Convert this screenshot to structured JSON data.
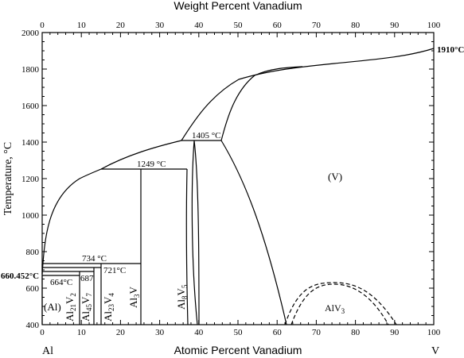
{
  "chart_data": {
    "type": "phase-diagram",
    "top_axis_title": "Weight Percent Vanadium",
    "bottom_axis_title": "Atomic Percent Vanadium",
    "y_axis_title": "Temperature, °C",
    "x_tick_labels_bottom": [
      "0",
      "10",
      "20",
      "30",
      "40",
      "50",
      "60",
      "70",
      "80",
      "90",
      "100"
    ],
    "x_tick_labels_top": [
      "0",
      "10",
      "20",
      "30",
      "40",
      "50",
      "60",
      "70",
      "80",
      "90",
      "100"
    ],
    "y_tick_labels": [
      "400",
      "600",
      "800",
      "1000",
      "1200",
      "1400",
      "1600",
      "1800",
      "2000"
    ],
    "xlim": [
      0,
      100
    ],
    "ylim": [
      400,
      2000
    ],
    "left_element": "Al",
    "right_element": "V",
    "temperature_labels": {
      "al_melting": "660.452°C",
      "v_melting": "1910°C",
      "t1405": "1405 °C",
      "t1249": "1249 °C",
      "t734": "734 °C",
      "t721": "721°C",
      "t687": "687",
      "t664": "664°C"
    },
    "phase_labels": {
      "al_solid": "(Al)",
      "v_solid": "(V)"
    },
    "compounds": [
      {
        "base": "Al",
        "sub1": "21",
        "mid": "V",
        "sub2": "2"
      },
      {
        "base": "Al",
        "sub1": "45",
        "mid": "V",
        "sub2": "7"
      },
      {
        "base": "Al",
        "sub1": "23",
        "mid": "V",
        "sub2": "4"
      },
      {
        "base": "Al",
        "sub1": "3",
        "mid": "V",
        "sub2": ""
      },
      {
        "base": "Al",
        "sub1": "8",
        "mid": "V",
        "sub2": "5"
      },
      {
        "base": "AlV",
        "sub1": "3",
        "mid": "",
        "sub2": ""
      }
    ]
  }
}
